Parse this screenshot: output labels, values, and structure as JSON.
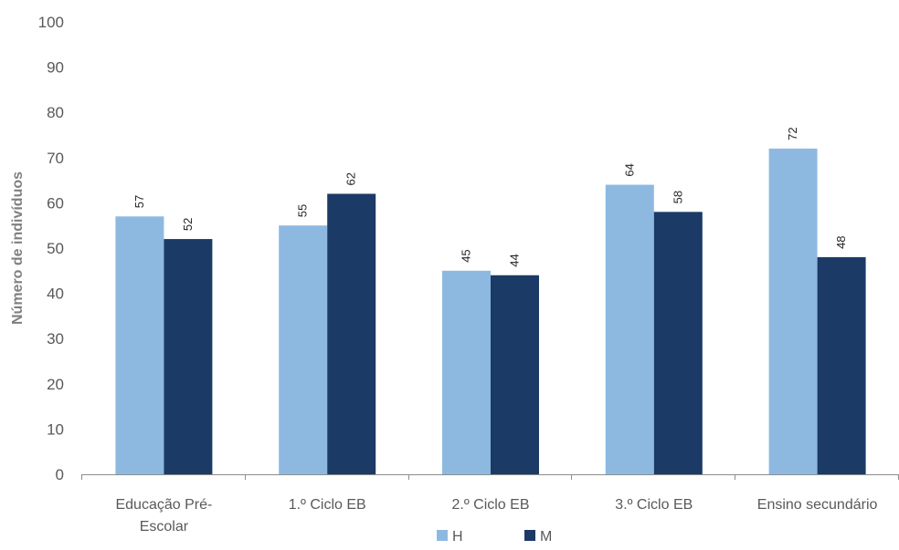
{
  "chart_data": {
    "type": "bar",
    "title": "",
    "xlabel": "",
    "ylabel": "Número de indivíduos",
    "categories": [
      [
        "Educação Pré-",
        "Escolar"
      ],
      [
        "1.º Ciclo EB"
      ],
      [
        "2.º Ciclo EB"
      ],
      [
        "3.º Ciclo EB"
      ],
      [
        "Ensino secundário"
      ]
    ],
    "series": [
      {
        "name": "H",
        "color": "#8DB9E1",
        "values": [
          57,
          55,
          45,
          64,
          72
        ]
      },
      {
        "name": "M",
        "color": "#1B3A66",
        "values": [
          52,
          62,
          44,
          58,
          48
        ]
      }
    ],
    "ylim": [
      0,
      100
    ],
    "yticks": [
      0,
      10,
      20,
      30,
      40,
      50,
      60,
      70,
      80,
      90,
      100
    ],
    "grid": false,
    "legend_position": "bottom",
    "data_labels": true
  }
}
